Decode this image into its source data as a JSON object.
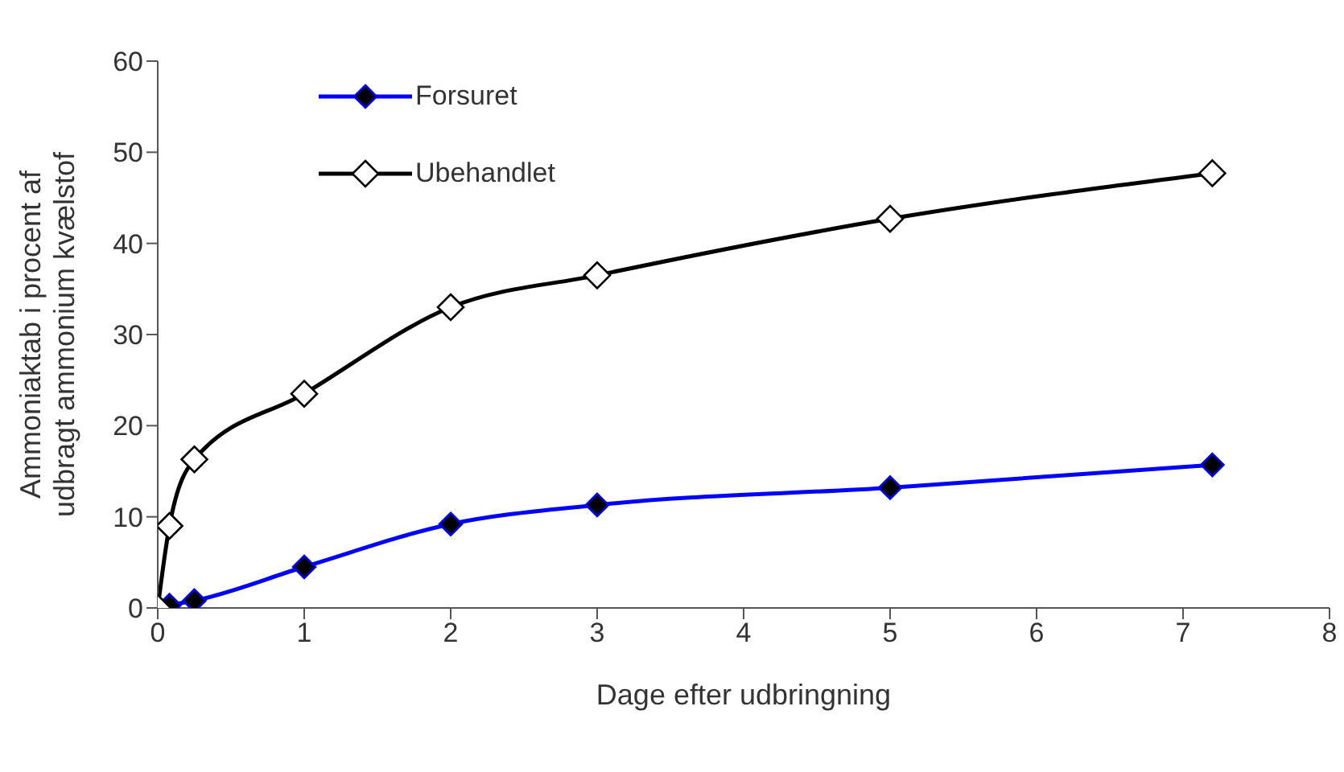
{
  "chart_data": {
    "type": "line",
    "xlabel": "Dage efter udbringning",
    "ylabel": "Ammoniaktab i procent af\nudbragt ammonium kvælstof",
    "x": [
      0,
      0.08,
      0.25,
      1,
      2,
      3,
      5,
      7.2
    ],
    "series": [
      {
        "name": "Forsuret",
        "color": "#0000ff",
        "values": [
          0,
          0.3,
          0.8,
          4.5,
          9.2,
          11.3,
          13.2,
          15.7
        ]
      },
      {
        "name": "Ubehandlet",
        "color": "#000000",
        "values": [
          0,
          9,
          16.3,
          23.5,
          33,
          36.5,
          42.7,
          47.7
        ]
      }
    ],
    "xlim": [
      0,
      8
    ],
    "xticks": [
      0,
      1,
      2,
      3,
      4,
      5,
      6,
      7,
      8
    ],
    "ylim": [
      0,
      60
    ],
    "yticks": [
      0,
      10,
      20,
      30,
      40,
      50,
      60
    ],
    "grid": false,
    "legend": "top left",
    "marker": "diamond",
    "line_style": "solid"
  }
}
